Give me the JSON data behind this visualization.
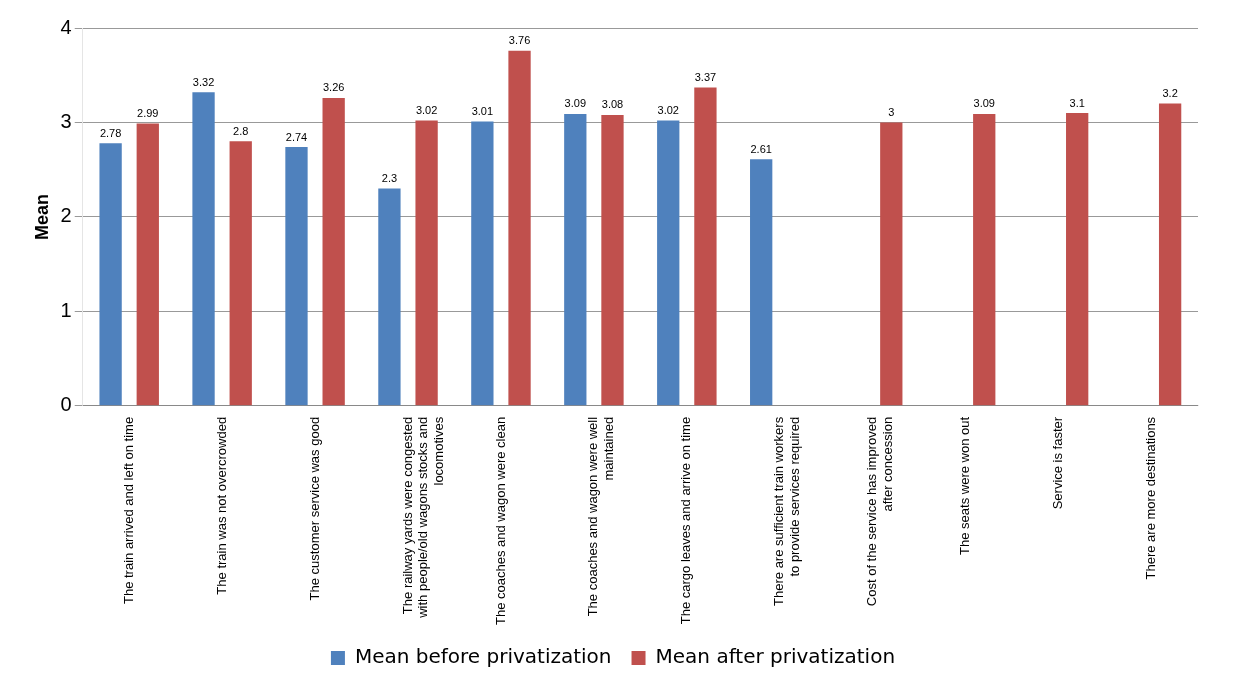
{
  "chart_data": {
    "type": "bar",
    "ylabel": "Mean",
    "categories": [
      "The train arrived and left on time",
      "The train was not overcrowded",
      "The customer service was good",
      "The railway yards were congested with people/old wagons stocks and locomotives",
      "The coaches and wagon were clean",
      "The coaches and wagon were well maintained",
      "The cargo leaves and arrive on time",
      "There are sufficient train workers to provide services required",
      "Cost of the service has improved after concession",
      "The seats were won out",
      "Service is faster",
      "There are more destinations"
    ],
    "series": [
      {
        "name": "Mean before privatization",
        "color": "#4f81bd",
        "values": [
          2.78,
          3.32,
          2.74,
          2.3,
          3.01,
          3.09,
          3.02,
          2.61,
          null,
          null,
          null,
          null
        ]
      },
      {
        "name": "Mean after privatization",
        "color": "#c0504d",
        "values": [
          2.99,
          2.8,
          3.26,
          3.02,
          3.76,
          3.08,
          3.37,
          null,
          3,
          3.09,
          3.1,
          3.2
        ]
      }
    ],
    "ylim": [
      0,
      4
    ],
    "yticks": [
      0,
      1,
      2,
      3,
      4
    ],
    "grid": "y",
    "legend": "bottom",
    "data_labels": true
  }
}
